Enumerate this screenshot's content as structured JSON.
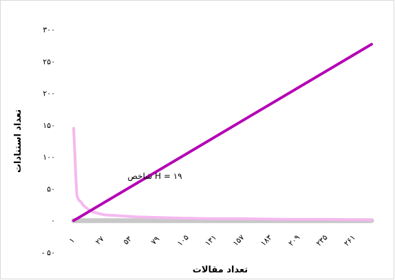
{
  "chart_data": {
    "type": "line",
    "xlabel": "تعداد مقالات",
    "ylabel": "تعداد استنادات",
    "annotation": "شاخص H = ۱۹",
    "ylim": [
      -50,
      300
    ],
    "xlim": [
      1,
      280
    ],
    "y_ticks": [
      {
        "value": 300,
        "label": "۳۰۰"
      },
      {
        "value": 250,
        "label": "۲۵۰"
      },
      {
        "value": 200,
        "label": "۲۰۰"
      },
      {
        "value": 150,
        "label": "۱۵۰"
      },
      {
        "value": 100,
        "label": "۱۰۰"
      },
      {
        "value": 50,
        "label": "۵۰"
      },
      {
        "value": 0,
        "label": "۰"
      },
      {
        "value": -50,
        "label": "- ۵۰"
      }
    ],
    "x_ticks": [
      {
        "value": 1,
        "label": "۱"
      },
      {
        "value": 27,
        "label": "۲۷"
      },
      {
        "value": 53,
        "label": "۵۳"
      },
      {
        "value": 79,
        "label": "۷۹"
      },
      {
        "value": 105,
        "label": "۱۰۵"
      },
      {
        "value": 131,
        "label": "۱۳۱"
      },
      {
        "value": 157,
        "label": "۱۵۷"
      },
      {
        "value": 183,
        "label": "۱۸۳"
      },
      {
        "value": 209,
        "label": "۲۰۹"
      },
      {
        "value": 235,
        "label": "۲۳۵"
      },
      {
        "value": 261,
        "label": "۲۶۱"
      }
    ],
    "series": [
      {
        "color": "#b400b4",
        "x": [
          1,
          280
        ],
        "y": [
          0,
          277
        ]
      },
      {
        "color": "#f5b8ef",
        "x": [
          1,
          2,
          3,
          4,
          5,
          6,
          8,
          10,
          13,
          16,
          20,
          25,
          30,
          40,
          50,
          60,
          80,
          100,
          130,
          160,
          200,
          240,
          280
        ],
        "y": [
          145,
          110,
          70,
          40,
          35,
          32,
          29,
          24,
          20,
          16,
          13,
          11,
          9,
          8,
          7,
          6,
          5,
          4,
          3,
          3,
          2,
          2,
          1
        ]
      },
      {
        "color": "#c8c8c8",
        "x": [
          1,
          280
        ],
        "y": [
          0,
          0
        ]
      }
    ]
  }
}
